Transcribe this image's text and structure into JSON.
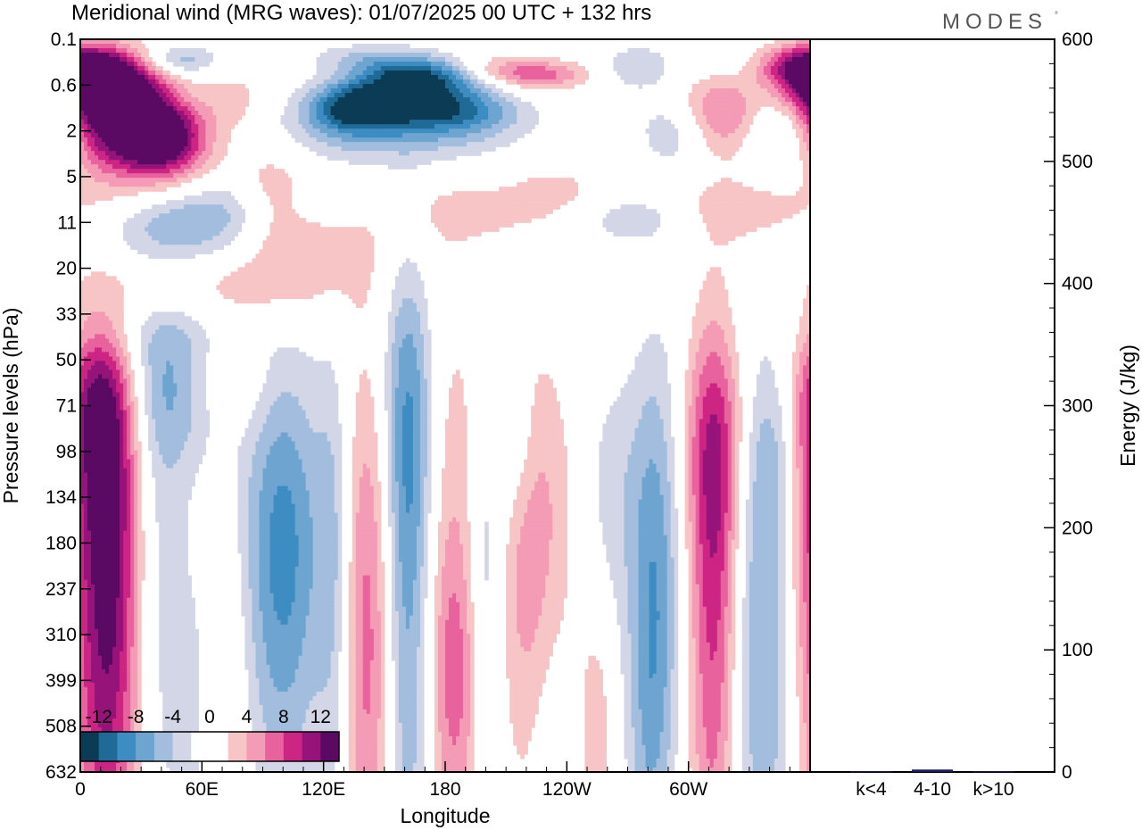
{
  "chart_data": [
    {
      "type": "heatmap",
      "title": "Meridional wind (MRG waves):  01/07/2025  00 UTC  + 132 hrs",
      "brand": "MODES",
      "brand_mark": "°",
      "xlabel": "Longitude",
      "ylabel": "Pressure levels (hPa)",
      "x_ticks": [
        "0",
        "60E",
        "120E",
        "180",
        "120W",
        "60W"
      ],
      "x_tick_deg": [
        0,
        60,
        120,
        180,
        240,
        300
      ],
      "xlim": [
        0,
        360
      ],
      "y_ticks": [
        "0.1",
        "0.6",
        "2",
        "5",
        "11",
        "20",
        "33",
        "50",
        "71",
        "98",
        "134",
        "180",
        "237",
        "310",
        "399",
        "508",
        "632"
      ],
      "colorbar": {
        "labels": [
          "-12",
          "-8",
          "-4",
          "0",
          "4",
          "8",
          "12"
        ],
        "colors": [
          "#0b3b55",
          "#1f6a97",
          "#3d8cc2",
          "#6ea5d0",
          "#a2bddd",
          "#d2d6e6",
          "#ffffff",
          "#ffffff",
          "#f7c5c5",
          "#f49bb6",
          "#e8629d",
          "#cc2584",
          "#96147a",
          "#5a0a63"
        ]
      },
      "blobs": [
        {
          "lon": 12,
          "p": 0.4,
          "lw": 16,
          "lh": 0.8,
          "v": 14
        },
        {
          "lon": 22,
          "p": 1.2,
          "lw": 18,
          "lh": 0.75,
          "v": 14
        },
        {
          "lon": 42,
          "p": 2.3,
          "lw": 14,
          "lh": 0.55,
          "v": 10
        },
        {
          "lon": 25,
          "p": 3.0,
          "lw": 30,
          "lh": 0.7,
          "v": 4
        },
        {
          "lon": 50,
          "p": 0.22,
          "lw": 12,
          "lh": 0.4,
          "v": -5
        },
        {
          "lon": 75,
          "p": 0.9,
          "lw": 10,
          "lh": 0.5,
          "v": 3
        },
        {
          "lon": 95,
          "p": 7,
          "lw": 12,
          "lh": 0.6,
          "v": 4
        },
        {
          "lon": 60,
          "p": 9,
          "lw": 28,
          "lh": 0.4,
          "v": -5
        },
        {
          "lon": 43,
          "p": 13,
          "lw": 30,
          "lh": 0.3,
          "v": -3
        },
        {
          "lon": 135,
          "p": 1.1,
          "lw": 16,
          "lh": 0.45,
          "v": -12
        },
        {
          "lon": 165,
          "p": 0.45,
          "lw": 22,
          "lh": 0.55,
          "v": -14
        },
        {
          "lon": 182,
          "p": 1.2,
          "lw": 24,
          "lh": 0.45,
          "v": -9
        },
        {
          "lon": 150,
          "p": 2.0,
          "lw": 40,
          "lh": 0.5,
          "v": -4
        },
        {
          "lon": 140,
          "p": 0.2,
          "lw": 20,
          "lh": 0.4,
          "v": -3
        },
        {
          "lon": 225,
          "p": 0.4,
          "lw": 18,
          "lh": 0.4,
          "v": 7
        },
        {
          "lon": 200,
          "p": 0.3,
          "lw": 16,
          "lh": 0.4,
          "v": 3
        },
        {
          "lon": 275,
          "p": 0.3,
          "lw": 12,
          "lh": 0.6,
          "v": -4
        },
        {
          "lon": 295,
          "p": 2.0,
          "lw": 14,
          "lh": 0.6,
          "v": -4
        },
        {
          "lon": 315,
          "p": 1.3,
          "lw": 14,
          "lh": 0.7,
          "v": 7
        },
        {
          "lon": 345,
          "p": 2.2,
          "lw": 12,
          "lh": 0.6,
          "v": -5
        },
        {
          "lon": 355,
          "p": 0.3,
          "lw": 14,
          "lh": 0.6,
          "v": 9
        },
        {
          "lon": 275,
          "p": 10,
          "lw": 26,
          "lh": 0.3,
          "v": -4
        },
        {
          "lon": 320,
          "p": 9,
          "lw": 28,
          "lh": 0.35,
          "v": 4
        },
        {
          "lon": 190,
          "p": 9,
          "lw": 24,
          "lh": 0.35,
          "v": 3
        },
        {
          "lon": 115,
          "p": 15,
          "lw": 30,
          "lh": 0.35,
          "v": 3
        },
        {
          "lon": 235,
          "p": 7,
          "lw": 18,
          "lh": 0.4,
          "v": 3
        },
        {
          "lon": 80,
          "p": 27,
          "lw": 40,
          "lh": 0.3,
          "v": 3
        },
        {
          "lon": 45,
          "p": 38,
          "lw": 36,
          "lh": 0.25,
          "v": -3
        },
        {
          "lon": 45,
          "p": 65,
          "lw": 18,
          "lh": 0.4,
          "v": -5
        },
        {
          "lon": 75,
          "p": 55,
          "lw": 14,
          "lh": 0.3,
          "v": 3
        },
        {
          "lon": 10,
          "p": 75,
          "lw": 12,
          "lh": 0.5,
          "v": 9
        },
        {
          "lon": 8,
          "p": 280,
          "lw": 14,
          "lh": 1.6,
          "v": 6
        },
        {
          "lon": 15,
          "p": 230,
          "lw": 10,
          "lh": 0.9,
          "v": 8
        },
        {
          "lon": 40,
          "p": 200,
          "lw": 10,
          "lh": 1.0,
          "v": -3
        },
        {
          "lon": 100,
          "p": 190,
          "lw": 14,
          "lh": 0.9,
          "v": -9
        },
        {
          "lon": 125,
          "p": 200,
          "lw": 6,
          "lh": 1.0,
          "v": -4
        },
        {
          "lon": 142,
          "p": 300,
          "lw": 9,
          "lh": 1.2,
          "v": 7
        },
        {
          "lon": 161,
          "p": 230,
          "lw": 8,
          "lh": 2.0,
          "v": -6
        },
        {
          "lon": 163,
          "p": 85,
          "lw": 10,
          "lh": 0.8,
          "v": -4
        },
        {
          "lon": 183,
          "p": 200,
          "lw": 10,
          "lh": 1.3,
          "v": 4
        },
        {
          "lon": 185,
          "p": 400,
          "lw": 8,
          "lh": 0.5,
          "v": 4
        },
        {
          "lon": 200,
          "p": 220,
          "lw": 6,
          "lh": 0.7,
          "v": -4
        },
        {
          "lon": 225,
          "p": 200,
          "lw": 12,
          "lh": 0.9,
          "v": 7
        },
        {
          "lon": 215,
          "p": 95,
          "lw": 8,
          "lh": 0.4,
          "v": -3
        },
        {
          "lon": 263,
          "p": 130,
          "lw": 10,
          "lh": 0.6,
          "v": -3
        },
        {
          "lon": 230,
          "p": 400,
          "lw": 8,
          "lh": 0.8,
          "v": -3
        },
        {
          "lon": 284,
          "p": 190,
          "lw": 9,
          "lh": 1.0,
          "v": -7
        },
        {
          "lon": 313,
          "p": 210,
          "lw": 9,
          "lh": 1.3,
          "v": 10
        },
        {
          "lon": 338,
          "p": 290,
          "lw": 14,
          "lh": 1.2,
          "v": -7
        },
        {
          "lon": 315,
          "p": 95,
          "lw": 14,
          "lh": 0.5,
          "v": 4
        },
        {
          "lon": 345,
          "p": 100,
          "lw": 14,
          "lh": 0.4,
          "v": -3
        },
        {
          "lon": 355,
          "p": 160,
          "lw": 8,
          "lh": 0.8,
          "v": 3
        },
        {
          "lon": 280,
          "p": 500,
          "lw": 8,
          "lh": 0.6,
          "v": -3
        },
        {
          "lon": 70,
          "p": 400,
          "lw": 8,
          "lh": 0.6,
          "v": 3
        },
        {
          "lon": 55,
          "p": 450,
          "lw": 8,
          "lh": 0.5,
          "v": -3
        },
        {
          "lon": 255,
          "p": 500,
          "lw": 6,
          "lh": 0.5,
          "v": 3
        }
      ]
    },
    {
      "type": "bar",
      "categories": [
        "k<4",
        "4-10",
        "k>10"
      ],
      "values": [
        0.5,
        2,
        0.5
      ],
      "ylabel": "Energy (J/kg)",
      "ylim": [
        0,
        600
      ],
      "y_ticks": [
        0,
        100,
        200,
        300,
        400,
        500,
        600
      ],
      "bar_color": "#1a1a5e"
    }
  ]
}
